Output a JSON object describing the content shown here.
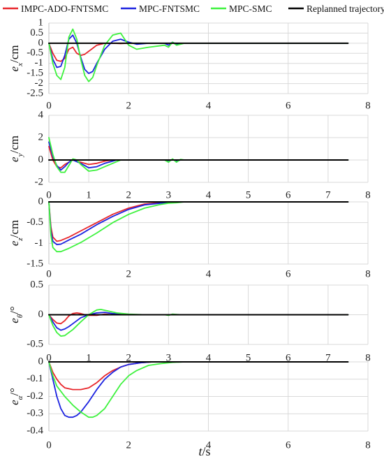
{
  "legend": {
    "placement": "top",
    "items": [
      {
        "label": "IMPC-ADO-FNTSMC",
        "color": "#e8262b"
      },
      {
        "label": "MPC-FNTSMC",
        "color": "#1b22e0"
      },
      {
        "label": "MPC-SMC",
        "color": "#3ef23e"
      },
      {
        "label": "Replanned trajectory",
        "color": "#000000"
      }
    ]
  },
  "xlabel": {
    "t": "t",
    "unit": "/s"
  },
  "chart_data": [
    {
      "type": "line",
      "ylabel": {
        "sym": "e",
        "sub": "x",
        "unit": "/cm"
      },
      "xlim": [
        0,
        8
      ],
      "ylim": [
        -2.5,
        1
      ],
      "xticks": [
        "0",
        "2",
        "4",
        "6",
        "8"
      ],
      "yticks": [
        "1",
        "0.5",
        "0",
        "-0.5",
        "-1",
        "-1.5",
        "-2",
        "-2.5"
      ],
      "yticks_values": [
        1,
        0.5,
        0,
        -0.5,
        -1,
        -1.5,
        -2,
        -2.5
      ],
      "grid": true,
      "series": [
        {
          "name": "Replanned trajectory",
          "x": [
            0,
            7.5
          ],
          "y": [
            0,
            0
          ]
        },
        {
          "name": "IMPC-ADO-FNTSMC",
          "x": [
            0,
            0.1,
            0.2,
            0.3,
            0.4,
            0.5,
            0.6,
            0.7,
            0.8,
            0.9,
            1.0,
            1.1,
            1.2,
            1.4,
            1.6,
            1.8,
            2.0,
            2.5,
            3.0,
            7.5
          ],
          "y": [
            0,
            -0.5,
            -0.85,
            -0.9,
            -0.75,
            -0.3,
            -0.2,
            -0.5,
            -0.6,
            -0.55,
            -0.4,
            -0.25,
            -0.1,
            0,
            0,
            -0.02,
            0,
            0,
            0,
            0
          ]
        },
        {
          "name": "MPC-FNTSMC",
          "x": [
            0,
            0.1,
            0.2,
            0.3,
            0.4,
            0.5,
            0.6,
            0.7,
            0.8,
            0.9,
            1.0,
            1.1,
            1.2,
            1.4,
            1.6,
            1.8,
            2.0,
            2.2,
            2.5,
            2.9,
            3.0,
            3.1,
            3.2,
            3.4,
            7.5
          ],
          "y": [
            0,
            -0.8,
            -1.2,
            -1.15,
            -0.6,
            0.2,
            0.4,
            0,
            -0.7,
            -1.3,
            -1.5,
            -1.4,
            -1.0,
            -0.3,
            0.1,
            0.2,
            0.05,
            -0.05,
            0,
            0,
            -0.1,
            0.05,
            -0.05,
            0,
            0
          ]
        },
        {
          "name": "MPC-SMC",
          "x": [
            0,
            0.1,
            0.2,
            0.3,
            0.4,
            0.5,
            0.6,
            0.7,
            0.8,
            0.9,
            1.0,
            1.1,
            1.2,
            1.4,
            1.6,
            1.8,
            2.0,
            2.1,
            2.2,
            2.5,
            2.9,
            3.0,
            3.1,
            3.2,
            3.4,
            7.5
          ],
          "y": [
            0,
            -1.0,
            -1.6,
            -1.8,
            -1.2,
            0.3,
            0.7,
            0.2,
            -0.8,
            -1.6,
            -1.9,
            -1.7,
            -1.1,
            -0.1,
            0.4,
            0.5,
            -0.1,
            -0.2,
            -0.3,
            -0.2,
            -0.1,
            -0.2,
            0.05,
            -0.1,
            0,
            0
          ]
        }
      ]
    },
    {
      "type": "line",
      "ylabel": {
        "sym": "e",
        "sub": "y",
        "unit": "/cm"
      },
      "xlim": [
        0,
        8
      ],
      "ylim": [
        -2,
        4
      ],
      "xticks": [
        "0",
        "1",
        "2",
        "3",
        "4",
        "5",
        "6",
        "7",
        "8"
      ],
      "yticks": [
        "4",
        "2",
        "0",
        "-2"
      ],
      "yticks_values": [
        4,
        2,
        0,
        -2
      ],
      "grid": true,
      "series": [
        {
          "name": "Replanned trajectory",
          "x": [
            0,
            7.5
          ],
          "y": [
            0,
            0
          ]
        },
        {
          "name": "IMPC-ADO-FNTSMC",
          "x": [
            0,
            0.1,
            0.2,
            0.3,
            0.4,
            0.6,
            0.8,
            1.0,
            1.2,
            1.4,
            1.6,
            3.0,
            7.5
          ],
          "y": [
            1.2,
            0,
            -0.6,
            -0.7,
            -0.4,
            0,
            -0.2,
            -0.4,
            -0.3,
            -0.1,
            0,
            0,
            0
          ]
        },
        {
          "name": "MPC-FNTSMC",
          "x": [
            0,
            0.1,
            0.2,
            0.3,
            0.4,
            0.5,
            0.6,
            0.8,
            1.0,
            1.2,
            1.4,
            1.6,
            1.7,
            2.9,
            3.0,
            3.1,
            3.2,
            3.3,
            7.5
          ],
          "y": [
            1.6,
            0.3,
            -0.5,
            -0.9,
            -0.6,
            -0.2,
            0,
            -0.3,
            -0.7,
            -0.6,
            -0.3,
            -0.1,
            0,
            0,
            -0.15,
            0.05,
            -0.1,
            0,
            0
          ]
        },
        {
          "name": "MPC-SMC",
          "x": [
            0,
            0.1,
            0.2,
            0.3,
            0.4,
            0.5,
            0.6,
            0.7,
            0.8,
            1.0,
            1.2,
            1.4,
            1.6,
            1.8,
            2.9,
            3.0,
            3.1,
            3.2,
            3.3,
            3.4,
            7.5
          ],
          "y": [
            2.0,
            0.5,
            -0.6,
            -1.1,
            -1.1,
            -0.5,
            0.1,
            0,
            -0.4,
            -1.0,
            -0.9,
            -0.6,
            -0.3,
            0,
            0,
            -0.2,
            0.1,
            -0.2,
            0.05,
            0,
            0
          ]
        }
      ]
    },
    {
      "type": "line",
      "ylabel": {
        "sym": "e",
        "sub": "z",
        "unit": "/cm"
      },
      "xlim": [
        0,
        8
      ],
      "ylim": [
        -1.5,
        0
      ],
      "xticks": [
        "0",
        "2",
        "4",
        "6",
        "8"
      ],
      "yticks": [
        "0",
        "-0.5",
        "-1",
        "-1.5"
      ],
      "yticks_values": [
        0,
        -0.5,
        -1,
        -1.5
      ],
      "grid": true,
      "series": [
        {
          "name": "Replanned trajectory",
          "x": [
            0,
            7.5
          ],
          "y": [
            0,
            0
          ]
        },
        {
          "name": "IMPC-ADO-FNTSMC",
          "x": [
            0,
            0.05,
            0.1,
            0.2,
            0.3,
            0.5,
            0.8,
            1.2,
            1.6,
            2.0,
            2.4,
            2.8,
            3.1,
            3.3,
            7.5
          ],
          "y": [
            0,
            -0.6,
            -0.85,
            -0.95,
            -0.93,
            -0.85,
            -0.7,
            -0.5,
            -0.3,
            -0.15,
            -0.05,
            -0.02,
            -0.01,
            0,
            0
          ]
        },
        {
          "name": "MPC-FNTSMC",
          "x": [
            0,
            0.05,
            0.1,
            0.2,
            0.3,
            0.5,
            0.8,
            1.2,
            1.6,
            2.0,
            2.4,
            2.8,
            3.1,
            3.3,
            7.5
          ],
          "y": [
            0,
            -0.7,
            -0.95,
            -1.03,
            -1.02,
            -0.92,
            -0.78,
            -0.55,
            -0.35,
            -0.18,
            -0.07,
            -0.03,
            -0.01,
            0,
            0
          ]
        },
        {
          "name": "MPC-SMC",
          "x": [
            0,
            0.05,
            0.1,
            0.2,
            0.3,
            0.5,
            0.8,
            1.2,
            1.6,
            2.0,
            2.4,
            2.8,
            3.0,
            3.2,
            3.4,
            7.5
          ],
          "y": [
            0,
            -0.8,
            -1.1,
            -1.2,
            -1.2,
            -1.12,
            -0.98,
            -0.75,
            -0.5,
            -0.3,
            -0.15,
            -0.06,
            -0.03,
            -0.02,
            0,
            0
          ]
        }
      ]
    },
    {
      "type": "line",
      "ylabel": {
        "sym": "e",
        "sub": "θ",
        "unit": "/°"
      },
      "xlim": [
        0,
        8
      ],
      "ylim": [
        -0.5,
        0.5
      ],
      "xticks": [
        "0",
        "1",
        "2",
        "3",
        "4",
        "5",
        "6",
        "7",
        "8"
      ],
      "yticks": [
        "0.5",
        "0",
        "-0.5"
      ],
      "yticks_values": [
        0.5,
        0,
        -0.5
      ],
      "grid": true,
      "series": [
        {
          "name": "Replanned trajectory",
          "x": [
            0,
            7.5
          ],
          "y": [
            0,
            0
          ]
        },
        {
          "name": "IMPC-ADO-FNTSMC",
          "x": [
            0,
            0.1,
            0.2,
            0.3,
            0.4,
            0.5,
            0.6,
            0.7,
            0.8,
            0.9,
            1.0,
            1.2,
            1.4,
            1.6,
            2.0,
            7.5
          ],
          "y": [
            0,
            -0.08,
            -0.14,
            -0.15,
            -0.1,
            -0.02,
            0.02,
            0.03,
            0.02,
            0,
            -0.01,
            -0.01,
            0.01,
            0,
            0,
            0
          ]
        },
        {
          "name": "MPC-FNTSMC",
          "x": [
            0,
            0.1,
            0.2,
            0.3,
            0.4,
            0.5,
            0.6,
            0.8,
            1.0,
            1.2,
            1.4,
            1.6,
            1.8,
            2.0,
            2.4,
            3.0,
            7.5
          ],
          "y": [
            0,
            -0.12,
            -0.22,
            -0.26,
            -0.24,
            -0.2,
            -0.15,
            -0.05,
            0,
            0.03,
            0.04,
            0.02,
            0.01,
            0,
            0,
            0,
            0
          ]
        },
        {
          "name": "MPC-SMC",
          "x": [
            0,
            0.1,
            0.2,
            0.3,
            0.4,
            0.5,
            0.6,
            0.8,
            1.0,
            1.2,
            1.3,
            1.5,
            1.7,
            2.0,
            2.4,
            2.9,
            3.0,
            3.1,
            3.3,
            7.5
          ],
          "y": [
            0,
            -0.18,
            -0.3,
            -0.36,
            -0.35,
            -0.3,
            -0.25,
            -0.12,
            0,
            0.08,
            0.09,
            0.06,
            0.03,
            0.01,
            0,
            0,
            -0.01,
            0.01,
            0,
            0
          ]
        }
      ]
    },
    {
      "type": "line",
      "ylabel": {
        "sym": "e",
        "sub": "α",
        "unit": "/°"
      },
      "xlim": [
        0,
        8
      ],
      "ylim": [
        -0.4,
        0
      ],
      "xticks": [
        "0",
        "2",
        "4",
        "6",
        "8"
      ],
      "yticks": [
        "0",
        "-0.1",
        "-0.2",
        "-0.3",
        "-0.4"
      ],
      "yticks_values": [
        0,
        -0.1,
        -0.2,
        -0.3,
        -0.4
      ],
      "grid": true,
      "series": [
        {
          "name": "Replanned trajectory",
          "x": [
            0,
            7.5
          ],
          "y": [
            0,
            0
          ]
        },
        {
          "name": "IMPC-ADO-FNTSMC",
          "x": [
            0,
            0.1,
            0.2,
            0.3,
            0.4,
            0.6,
            0.8,
            1.0,
            1.2,
            1.4,
            1.6,
            1.8,
            2.0,
            2.3,
            2.6,
            3.0,
            7.5
          ],
          "y": [
            0,
            -0.06,
            -0.1,
            -0.13,
            -0.15,
            -0.16,
            -0.16,
            -0.15,
            -0.12,
            -0.08,
            -0.05,
            -0.03,
            -0.015,
            -0.005,
            0,
            0,
            0
          ]
        },
        {
          "name": "MPC-FNTSMC",
          "x": [
            0,
            0.1,
            0.2,
            0.3,
            0.4,
            0.5,
            0.6,
            0.7,
            0.8,
            1.0,
            1.2,
            1.4,
            1.6,
            1.8,
            2.0,
            2.3,
            2.6,
            3.0,
            7.5
          ],
          "y": [
            0,
            -0.1,
            -0.2,
            -0.27,
            -0.31,
            -0.32,
            -0.32,
            -0.31,
            -0.29,
            -0.23,
            -0.16,
            -0.1,
            -0.06,
            -0.03,
            -0.015,
            -0.005,
            0,
            0,
            0
          ]
        },
        {
          "name": "MPC-SMC",
          "x": [
            0,
            0.1,
            0.2,
            0.3,
            0.4,
            0.6,
            0.8,
            1.0,
            1.1,
            1.2,
            1.4,
            1.6,
            1.8,
            2.0,
            2.2,
            2.5,
            2.8,
            3.1,
            3.4,
            7.5
          ],
          "y": [
            0,
            -0.08,
            -0.14,
            -0.17,
            -0.2,
            -0.25,
            -0.29,
            -0.32,
            -0.32,
            -0.31,
            -0.27,
            -0.2,
            -0.13,
            -0.08,
            -0.05,
            -0.02,
            -0.01,
            -0.003,
            0,
            0
          ]
        }
      ]
    }
  ]
}
